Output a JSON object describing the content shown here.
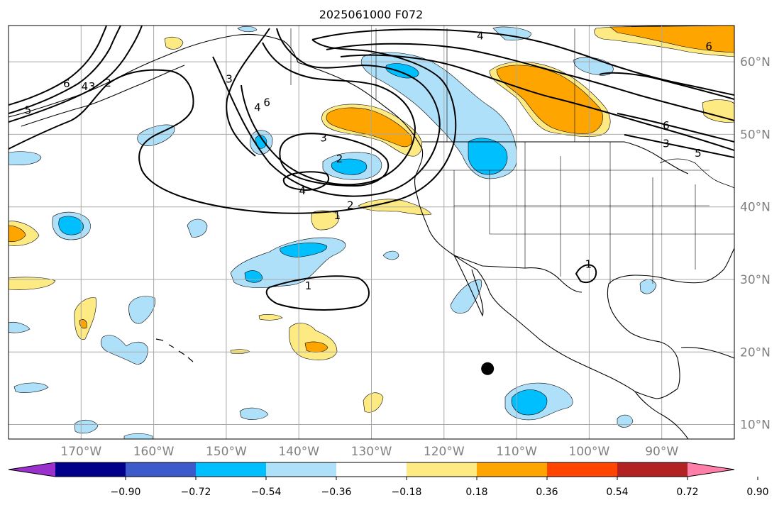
{
  "title": "2025061000 F072",
  "map": {
    "lon_range": [
      -180,
      -80
    ],
    "lat_range": [
      8,
      65
    ],
    "lat_ticks": [
      {
        "value": 10,
        "label": "10°N"
      },
      {
        "value": 20,
        "label": "20°N"
      },
      {
        "value": 30,
        "label": "30°N"
      },
      {
        "value": 40,
        "label": "40°N"
      },
      {
        "value": 50,
        "label": "50°N"
      },
      {
        "value": 60,
        "label": "60°N"
      }
    ],
    "lon_ticks": [
      {
        "value": -170,
        "label": "170°W"
      },
      {
        "value": -160,
        "label": "160°W"
      },
      {
        "value": -150,
        "label": "150°W"
      },
      {
        "value": -140,
        "label": "140°W"
      },
      {
        "value": -130,
        "label": "130°W"
      },
      {
        "value": -120,
        "label": "120°W"
      },
      {
        "value": -110,
        "label": "110°W"
      },
      {
        "value": -100,
        "label": "100°W"
      },
      {
        "value": -90,
        "label": "90°W"
      }
    ],
    "marker": {
      "lon": -114,
      "lat": 17.7
    },
    "contour_labels": [
      {
        "text": "4",
        "lon": -115,
        "lat": 63.6
      },
      {
        "text": "6",
        "lon": -172,
        "lat": 57
      },
      {
        "text": "4",
        "lon": -169.5,
        "lat": 56.6
      },
      {
        "text": "3",
        "lon": -168.5,
        "lat": 56.6
      },
      {
        "text": "2",
        "lon": -166.3,
        "lat": 57.1
      },
      {
        "text": "5",
        "lon": -177.3,
        "lat": 53.3
      },
      {
        "text": "3",
        "lon": -149.6,
        "lat": 57.6
      },
      {
        "text": "6",
        "lon": -144.4,
        "lat": 54.4
      },
      {
        "text": "4",
        "lon": -145.7,
        "lat": 53.7
      },
      {
        "text": "3",
        "lon": -136.6,
        "lat": 49.5
      },
      {
        "text": "2",
        "lon": -134.4,
        "lat": 46.6
      },
      {
        "text": "4",
        "lon": -139.5,
        "lat": 42.2
      },
      {
        "text": "2",
        "lon": -132.9,
        "lat": 40.2
      },
      {
        "text": "1",
        "lon": -134.7,
        "lat": 38.8
      },
      {
        "text": "1",
        "lon": -138.7,
        "lat": 29.1
      },
      {
        "text": "1",
        "lon": -100.1,
        "lat": 32.1
      },
      {
        "text": "6",
        "lon": -89.4,
        "lat": 51.2
      },
      {
        "text": "3",
        "lon": -89.4,
        "lat": 48.7
      },
      {
        "text": "5",
        "lon": -85,
        "lat": 47.4
      },
      {
        "text": "6",
        "lon": -83.5,
        "lat": 62.1
      }
    ]
  },
  "colorbar": {
    "ticks": [
      "−0.90",
      "−0.72",
      "−0.54",
      "−0.36",
      "−0.18",
      "0.18",
      "0.36",
      "0.54",
      "0.72",
      "0.90"
    ],
    "colors": [
      "#9a31cd",
      "#00008b",
      "#3d5acb",
      "#00bfff",
      "#aee0fa",
      "#ffffff",
      "#fdea82",
      "#ffa500",
      "#ff4500",
      "#b22222",
      "#ff7fa8"
    ]
  }
}
